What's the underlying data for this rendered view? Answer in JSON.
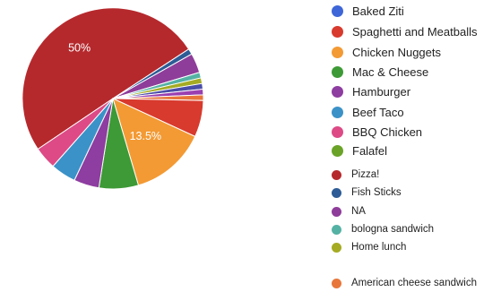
{
  "chart_data": {
    "type": "pie",
    "title": "",
    "slices": [
      {
        "label": "Pizza!",
        "value": 50,
        "color": "#b5292d"
      },
      {
        "label": "Fish Sticks",
        "value": 1,
        "color": "#2d5c96"
      },
      {
        "label": "NA",
        "value": 3.5,
        "color": "#8e3d9a"
      },
      {
        "label": "bologna sandwich",
        "value": 1,
        "color": "#54b2a4"
      },
      {
        "label": "Home lunch",
        "value": 1,
        "color": "#a5ab23"
      },
      {
        "label": "",
        "value": 1,
        "color": "#4a4ea8"
      },
      {
        "label": "",
        "value": 1,
        "color": "#9a3fb0"
      },
      {
        "label": "American cheese sandwich",
        "value": 1,
        "color": "#e8763a"
      },
      {
        "label": "Spaghetti and Meatballs",
        "value": 6.5,
        "color": "#d83a2d"
      },
      {
        "label": "Chicken Nuggets",
        "value": 13.5,
        "color": "#f39a34"
      },
      {
        "label": "Mac & Cheese",
        "value": 7,
        "color": "#3d9a36"
      },
      {
        "label": "Hamburger",
        "value": 4.5,
        "color": "#8e3da0"
      },
      {
        "label": "Beef Taco",
        "value": 4.5,
        "color": "#3b92c8"
      },
      {
        "label": "BBQ Chicken",
        "value": 4,
        "color": "#dd4a86"
      }
    ],
    "data_labels": [
      {
        "slice": "Pizza!",
        "text": "50%"
      },
      {
        "slice": "Chicken Nuggets",
        "text": "13.5%"
      }
    ],
    "legend_position": "right",
    "legend": [
      {
        "label": "Baked Ziti",
        "color": "#3e66d8"
      },
      {
        "label": "Spaghetti and Meatballs",
        "color": "#d83a2d"
      },
      {
        "label": "Chicken Nuggets",
        "color": "#f39a34"
      },
      {
        "label": "Mac & Cheese",
        "color": "#3d9a36"
      },
      {
        "label": "Hamburger",
        "color": "#8e3da0"
      },
      {
        "label": "Beef Taco",
        "color": "#3b92c8"
      },
      {
        "label": "BBQ Chicken",
        "color": "#dd4a86"
      },
      {
        "label": "Falafel",
        "color": "#6aa328"
      },
      {
        "label": "Pizza!",
        "color": "#b5292d"
      },
      {
        "label": "Fish Sticks",
        "color": "#2d5c96"
      },
      {
        "label": "NA",
        "color": "#8e3d9a"
      },
      {
        "label": "bologna sandwich",
        "color": "#54b2a4"
      },
      {
        "label": "Home lunch",
        "color": "#a5ab23"
      },
      {
        "label": "American cheese sandwich",
        "color": "#e8763a"
      }
    ]
  }
}
